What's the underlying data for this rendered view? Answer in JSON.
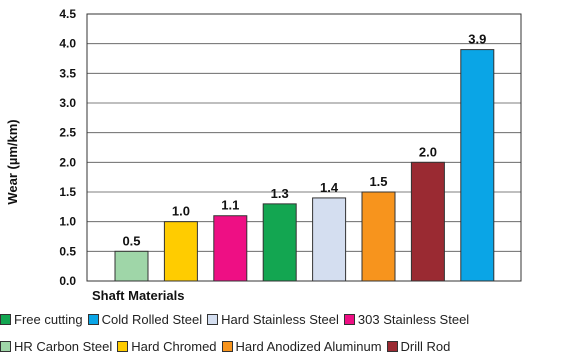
{
  "chart_data": {
    "type": "bar",
    "title": "",
    "xlabel": "Shaft Materials",
    "ylabel": "Wear (µm/km)",
    "ylim": [
      0,
      4.5
    ],
    "yticks": [
      "0.0",
      "0.5",
      "1.0",
      "1.5",
      "2.0",
      "2.5",
      "3.0",
      "3.5",
      "4.0",
      "4.5"
    ],
    "grid": true,
    "legend_placement": "bottom",
    "bars": [
      {
        "name": "HR Carbon Steel",
        "value": 0.5,
        "label": "0.5",
        "color": "#9fd6a8"
      },
      {
        "name": "Hard Chromed",
        "value": 1.0,
        "label": "1.0",
        "color": "#ffcc00"
      },
      {
        "name": "303 Stainless Steel",
        "value": 1.1,
        "label": "1.1",
        "color": "#ee0f84"
      },
      {
        "name": "Free cutting",
        "value": 1.3,
        "label": "1.3",
        "color": "#13a651"
      },
      {
        "name": "Hard Stainless Steel",
        "value": 1.4,
        "label": "1.4",
        "color": "#d4def0"
      },
      {
        "name": "Hard Anodized Aluminum",
        "value": 1.5,
        "label": "1.5",
        "color": "#f7941d"
      },
      {
        "name": "Drill Rod",
        "value": 2.0,
        "label": "2.0",
        "color": "#9a2a32"
      },
      {
        "name": "Cold Rolled Steel",
        "value": 3.9,
        "label": "3.9",
        "color": "#0aa5e6"
      }
    ]
  },
  "legend": {
    "row1": [
      {
        "label": "Free cutting",
        "color": "#13a651"
      },
      {
        "label": "Cold Rolled Steel",
        "color": "#0aa5e6"
      },
      {
        "label": "Hard Stainless Steel",
        "color": "#d4def0"
      },
      {
        "label": "303 Stainless Steel",
        "color": "#ee0f84"
      }
    ],
    "row2": [
      {
        "label": "HR Carbon Steel",
        "color": "#9fd6a8"
      },
      {
        "label": "Hard Chromed",
        "color": "#ffcc00"
      },
      {
        "label": "Hard Anodized Aluminum",
        "color": "#f7941d"
      },
      {
        "label": "Drill Rod",
        "color": "#9a2a32"
      }
    ]
  }
}
